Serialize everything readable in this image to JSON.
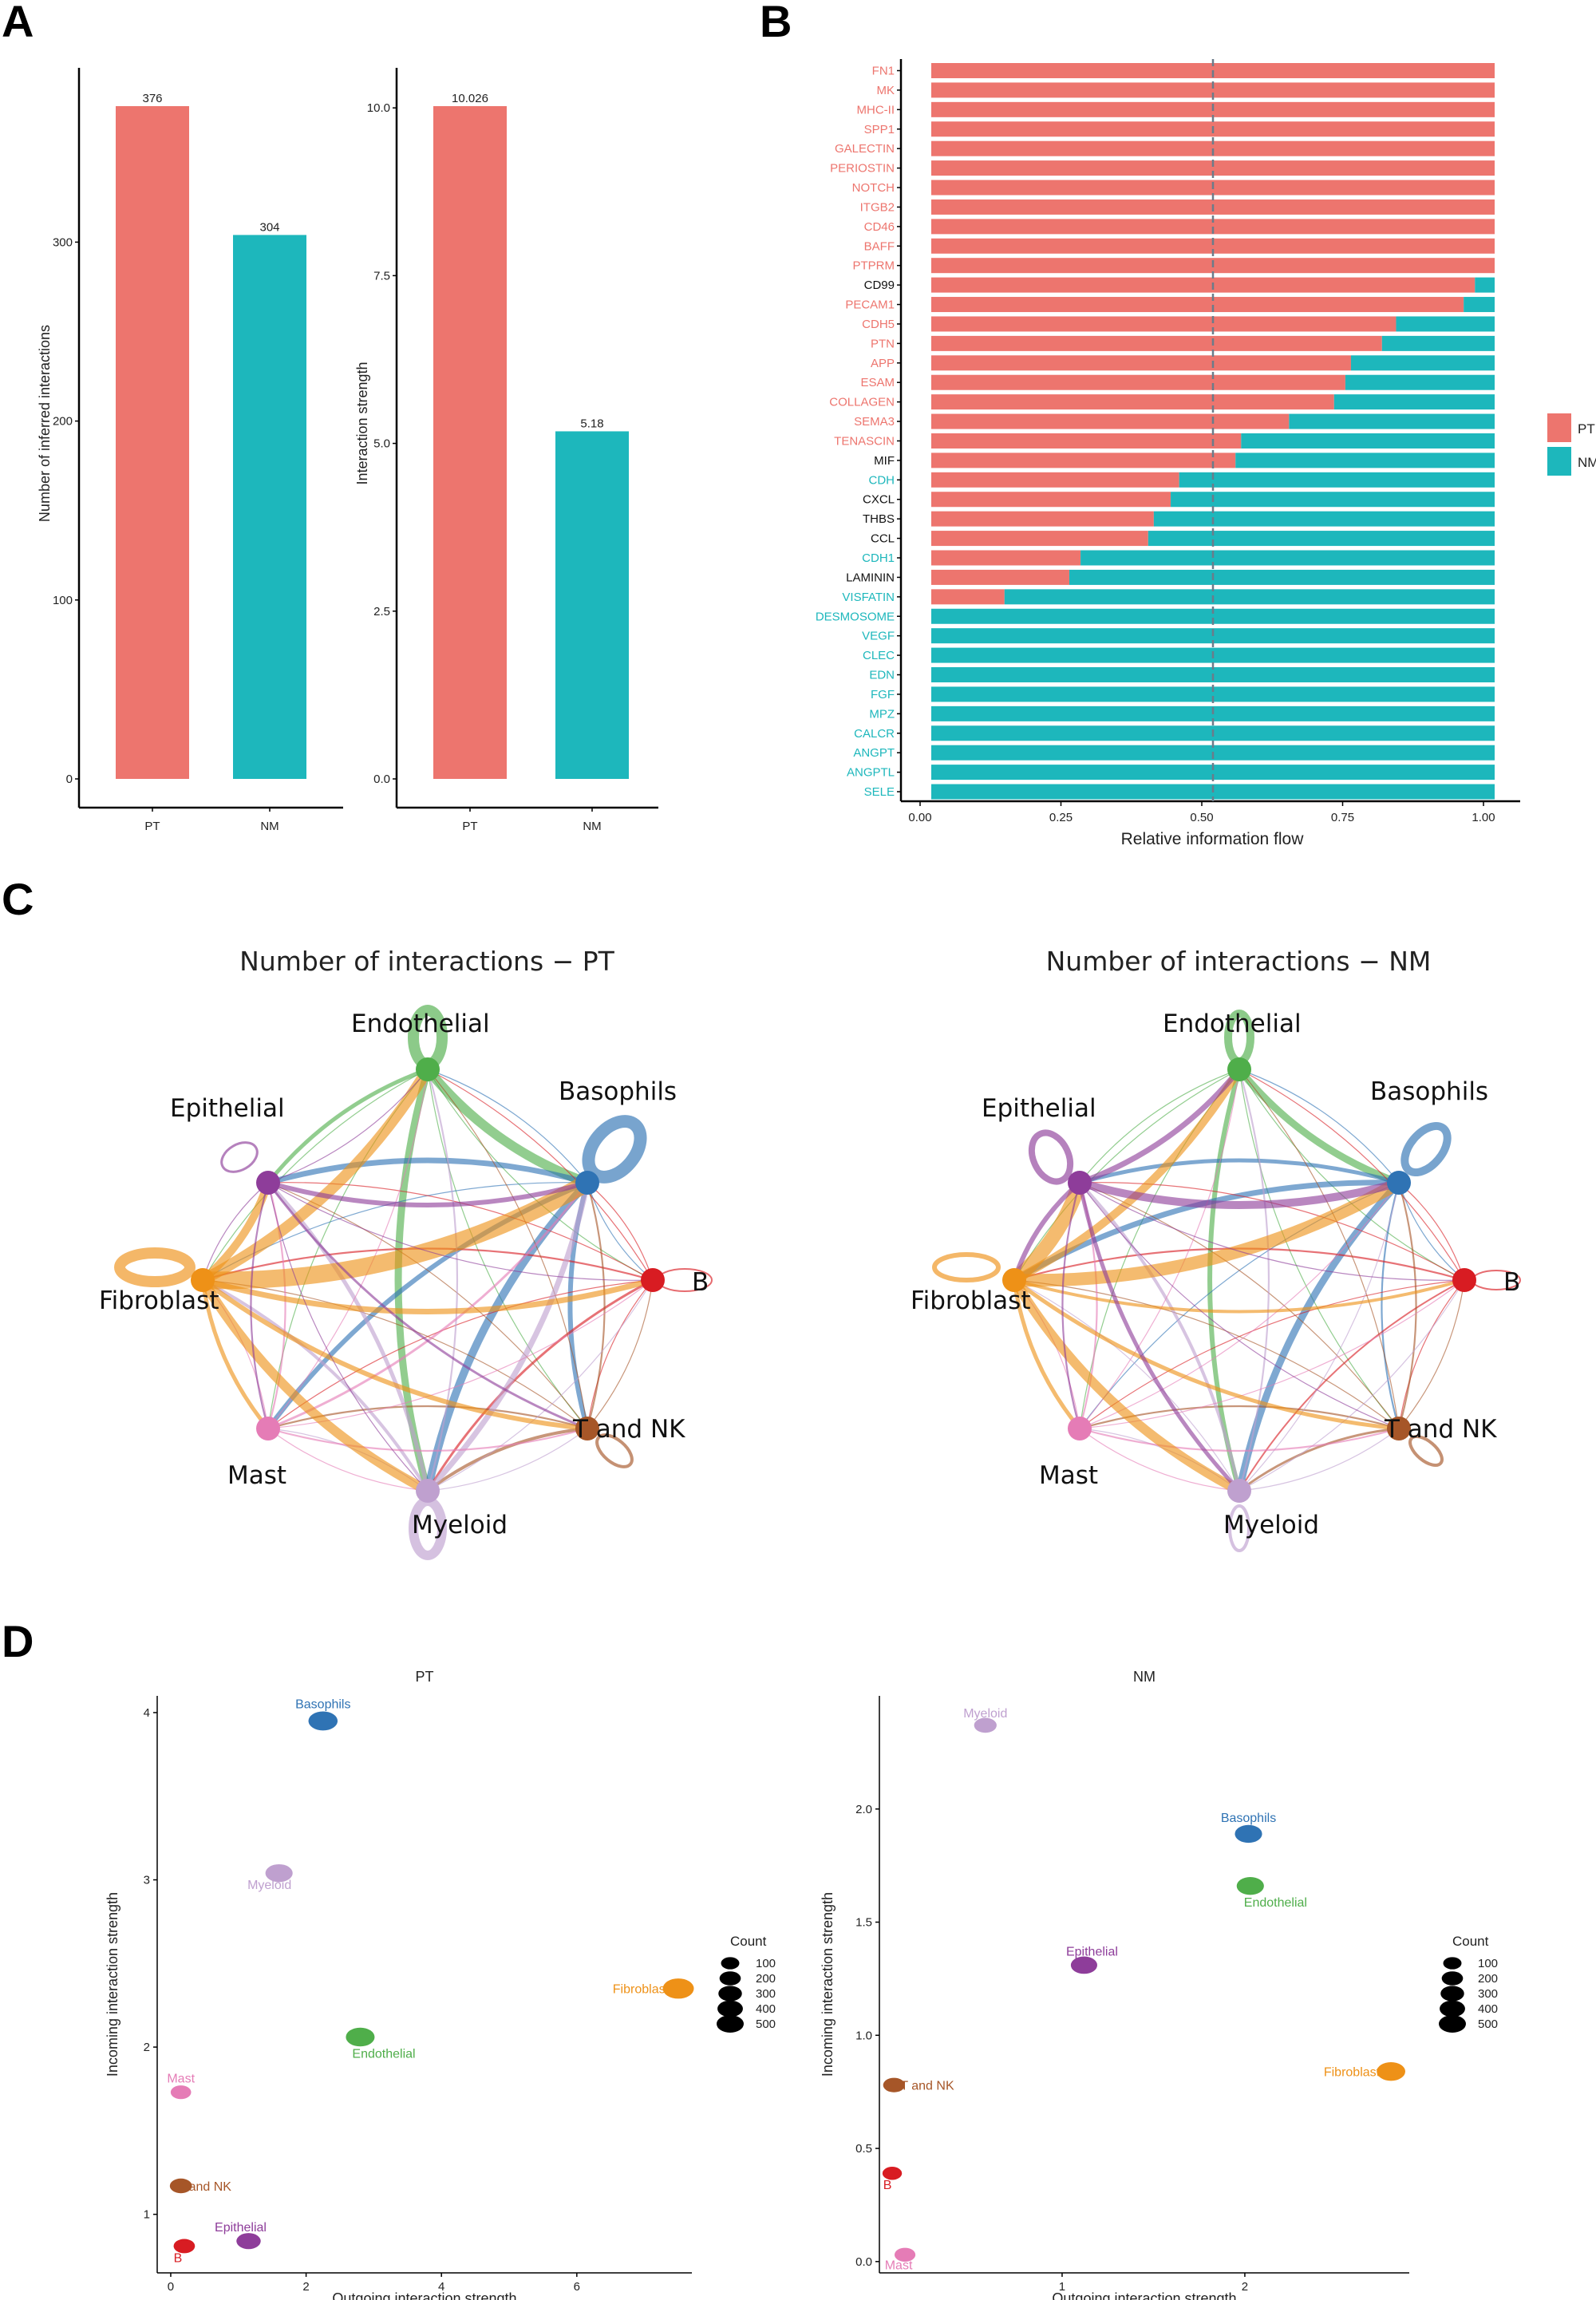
{
  "panels": {
    "a": "A",
    "b": "B",
    "c": "C",
    "d": "D"
  },
  "colors": {
    "pt": "#ED756E",
    "nm": "#1DB7BC"
  },
  "chart_data": [
    {
      "id": "A1",
      "type": "bar",
      "categories": [
        "PT",
        "NM"
      ],
      "values": [
        376,
        304
      ],
      "value_labels": [
        "376",
        "304"
      ],
      "xlabel": "",
      "ylabel": "Number of inferred interactions",
      "ylim": [
        0,
        376
      ],
      "yticks": [
        0,
        100,
        200,
        300
      ],
      "ytick_labels": [
        "0",
        "100",
        "200",
        "300"
      ]
    },
    {
      "id": "A2",
      "type": "bar",
      "categories": [
        "PT",
        "NM"
      ],
      "values": [
        10.026,
        5.18
      ],
      "value_labels": [
        "10.026",
        "5.18"
      ],
      "xlabel": "",
      "ylabel": "Interaction strength",
      "ylim": [
        0,
        10.026
      ],
      "yticks": [
        0,
        2.5,
        5,
        7.5,
        10
      ],
      "ytick_labels": [
        "0.0",
        "2.5",
        "5.0",
        "7.5",
        "10.0"
      ]
    },
    {
      "id": "B",
      "type": "bar",
      "orientation": "horizontal-stacked",
      "xlabel": "Relative information flow",
      "xticks": [
        0,
        0.25,
        0.5,
        0.75,
        1.0
      ],
      "xtick_labels": [
        "0.00",
        "0.25",
        "0.50",
        "0.75",
        "1.00"
      ],
      "reference_line": 0.5,
      "legend": [
        "PT",
        "NM"
      ],
      "categories": [
        "FN1",
        "MK",
        "MHC-II",
        "SPP1",
        "GALECTIN",
        "PERIOSTIN",
        "NOTCH",
        "ITGB2",
        "CD46",
        "BAFF",
        "PTPRM",
        "CD99",
        "PECAM1",
        "CDH5",
        "PTN",
        "APP",
        "ESAM",
        "COLLAGEN",
        "SEMA3",
        "TENASCIN",
        "MIF",
        "CDH",
        "CXCL",
        "THBS",
        "CCL",
        "CDH1",
        "LAMININ",
        "VISFATIN",
        "DESMOSOME",
        "VEGF",
        "CLEC",
        "EDN",
        "FGF",
        "MPZ",
        "CALCR",
        "ANGPT",
        "ANGPTL",
        "SELE"
      ],
      "label_colors": [
        "pt",
        "pt",
        "pt",
        "pt",
        "pt",
        "pt",
        "pt",
        "pt",
        "pt",
        "pt",
        "pt",
        "black",
        "pt",
        "pt",
        "pt",
        "pt",
        "pt",
        "pt",
        "pt",
        "pt",
        "black",
        "nm",
        "black",
        "black",
        "black",
        "nm",
        "black",
        "nm",
        "nm",
        "nm",
        "nm",
        "nm",
        "nm",
        "nm",
        "nm",
        "nm",
        "nm",
        "nm"
      ],
      "series": [
        {
          "name": "PT",
          "values": [
            1,
            1,
            1,
            1,
            1,
            1,
            1,
            1,
            1,
            1,
            1,
            0.965,
            0.945,
            0.825,
            0.8,
            0.745,
            0.735,
            0.715,
            0.635,
            0.55,
            0.54,
            0.44,
            0.425,
            0.395,
            0.385,
            0.265,
            0.245,
            0.13,
            0,
            0,
            0,
            0,
            0,
            0,
            0,
            0,
            0,
            0
          ]
        }
      ]
    },
    {
      "id": "C1",
      "type": "network",
      "title": "Number of interactions − PT",
      "nodes": [
        "Endothelial",
        "Basophils",
        "B",
        "T and NK",
        "Myeloid",
        "Mast",
        "Fibroblast",
        "Epithelial"
      ]
    },
    {
      "id": "C2",
      "type": "network",
      "title": "Number of interactions − NM",
      "nodes": [
        "Endothelial",
        "Basophils",
        "B",
        "T and NK",
        "Myeloid",
        "Mast",
        "Fibroblast",
        "Epithelial"
      ]
    },
    {
      "id": "D1",
      "type": "scatter",
      "title": "PT",
      "xlabel": "Outgoing interaction strength",
      "ylabel": "Incoming interaction strength",
      "xlim": [
        -0.2,
        7.7
      ],
      "ylim": [
        0.65,
        4.1
      ],
      "xticks": [
        0,
        2,
        4,
        6
      ],
      "xtick_labels": [
        "0",
        "2",
        "4",
        "6"
      ],
      "yticks": [
        1,
        2,
        3,
        4
      ],
      "ytick_labels": [
        "1",
        "2",
        "3",
        "4"
      ],
      "points": [
        {
          "label": "Basophils",
          "x": 2.25,
          "y": 3.95,
          "count": 376,
          "color": "#2F73B4"
        },
        {
          "label": "Myeloid",
          "x": 1.6,
          "y": 3.04,
          "count": 300,
          "color": "#BFA0CF"
        },
        {
          "label": "Fibroblast",
          "x": 7.5,
          "y": 2.35,
          "count": 460,
          "color": "#EE9117"
        },
        {
          "label": "Endothelial",
          "x": 2.8,
          "y": 2.06,
          "count": 360,
          "color": "#4FAE4A"
        },
        {
          "label": "Mast",
          "x": 0.15,
          "y": 1.73,
          "count": 100,
          "color": "#E57CB6"
        },
        {
          "label": "T and NK",
          "x": 0.15,
          "y": 1.17,
          "count": 140,
          "color": "#A65628"
        },
        {
          "label": "Epithelial",
          "x": 1.15,
          "y": 0.84,
          "count": 200,
          "color": "#8E3D9A"
        },
        {
          "label": "B",
          "x": 0.2,
          "y": 0.81,
          "count": 120,
          "color": "#D81C22"
        }
      ],
      "legend_title": "Count",
      "legend": [
        "100",
        "200",
        "300",
        "400",
        "500"
      ]
    },
    {
      "id": "D2",
      "type": "scatter",
      "title": "NM",
      "xlabel": "Outgoing interaction strength",
      "ylabel": "Incoming interaction strength",
      "xlim": [
        0,
        2.9
      ],
      "ylim": [
        -0.05,
        2.5
      ],
      "xticks": [
        1,
        2
      ],
      "xtick_labels": [
        "1",
        "2"
      ],
      "yticks": [
        0,
        0.5,
        1,
        1.5,
        2
      ],
      "ytick_labels": [
        "0.0",
        "0.5",
        "1.0",
        "1.5",
        "2.0"
      ],
      "points": [
        {
          "label": "Myeloid",
          "x": 0.58,
          "y": 2.37,
          "count": 150,
          "color": "#BFA0CF"
        },
        {
          "label": "Basophils",
          "x": 2.02,
          "y": 1.89,
          "count": 300,
          "color": "#2F73B4"
        },
        {
          "label": "Endothelial",
          "x": 2.03,
          "y": 1.66,
          "count": 300,
          "color": "#4FAE4A"
        },
        {
          "label": "Epithelial",
          "x": 1.12,
          "y": 1.31,
          "count": 270,
          "color": "#8E3D9A"
        },
        {
          "label": "Fibroblast",
          "x": 2.8,
          "y": 0.84,
          "count": 350,
          "color": "#EE9117"
        },
        {
          "label": "T and NK",
          "x": 0.08,
          "y": 0.78,
          "count": 130,
          "color": "#A65628"
        },
        {
          "label": "B",
          "x": 0.07,
          "y": 0.39,
          "count": 80,
          "color": "#D81C22"
        },
        {
          "label": "Mast",
          "x": 0.14,
          "y": 0.03,
          "count": 110,
          "color": "#E57CB6"
        }
      ],
      "legend_title": "Count",
      "legend": [
        "100",
        "200",
        "300",
        "400",
        "500"
      ]
    }
  ]
}
